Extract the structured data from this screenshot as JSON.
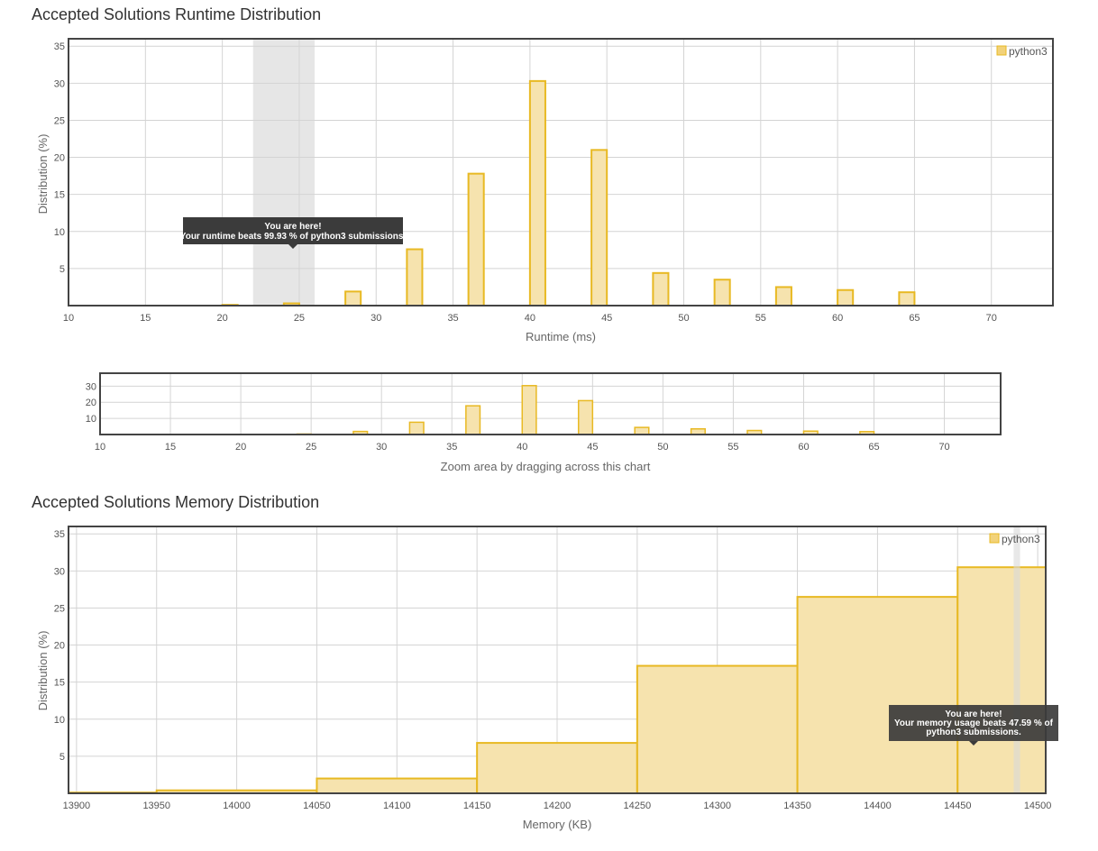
{
  "runtime_section": {
    "title": "Accepted Solutions Runtime Distribution"
  },
  "memory_section": {
    "title": "Accepted Solutions Memory Distribution"
  },
  "navigator": {
    "caption": "Zoom area by dragging across this chart"
  },
  "colors": {
    "bar_fill": "#f6e3ae",
    "bar_stroke": "#e8b923",
    "legend": "#e8b923",
    "highlight": "#d9d9d9",
    "tooltip_bg": "#3b3b3b",
    "frame": "#444444",
    "grid": "#d4d4d4"
  },
  "chart_data": [
    {
      "id": "runtime",
      "type": "bar",
      "title": "Accepted Solutions Runtime Distribution",
      "xlabel": "Runtime (ms)",
      "ylabel": "Distribution (%)",
      "legend": "python3",
      "xlim": [
        10,
        74
      ],
      "ylim": [
        0,
        36
      ],
      "xticks": [
        10,
        15,
        20,
        25,
        30,
        35,
        40,
        45,
        50,
        55,
        60,
        65,
        70
      ],
      "yticks": [
        5,
        10,
        15,
        20,
        25,
        30,
        35
      ],
      "bar_width": 1,
      "x": [
        20.5,
        24.5,
        28.5,
        32.5,
        36.5,
        40.5,
        44.5,
        48.5,
        52.5,
        56.5,
        60.5,
        64.5
      ],
      "values": [
        0.1,
        0.3,
        1.9,
        7.6,
        17.8,
        30.3,
        21.0,
        4.4,
        3.5,
        2.5,
        2.1,
        1.8
      ],
      "highlight": [
        22,
        26
      ],
      "tooltip": {
        "line1": "You are here!",
        "line2": "Your runtime beats 99.93 % of python3 submissions."
      }
    },
    {
      "id": "navigator",
      "type": "bar",
      "xlabel": "Zoom area by dragging across this chart",
      "xlim": [
        10,
        74
      ],
      "ylim": [
        0,
        38
      ],
      "xticks": [
        10,
        15,
        20,
        25,
        30,
        35,
        40,
        45,
        50,
        55,
        60,
        65,
        70
      ],
      "yticks": [
        10,
        20,
        30
      ],
      "bar_width": 1,
      "x": [
        20.5,
        24.5,
        28.5,
        32.5,
        36.5,
        40.5,
        44.5,
        48.5,
        52.5,
        56.5,
        60.5,
        64.5
      ],
      "values": [
        0.1,
        0.3,
        1.9,
        7.6,
        17.8,
        30.3,
        21.0,
        4.4,
        3.5,
        2.5,
        2.1,
        1.8
      ]
    },
    {
      "id": "memory",
      "type": "bar",
      "title": "Accepted Solutions Memory Distribution",
      "xlabel": "Memory (KB)",
      "ylabel": "Distribution (%)",
      "legend": "python3",
      "xlim": [
        13895,
        14505
      ],
      "ylim": [
        0,
        36
      ],
      "xticks": [
        13900,
        13950,
        14000,
        14050,
        14100,
        14150,
        14200,
        14250,
        14300,
        14350,
        14400,
        14450,
        14500
      ],
      "yticks": [
        5,
        10,
        15,
        20,
        25,
        30,
        35
      ],
      "bins": [
        {
          "x0": 13895,
          "x1": 13950,
          "value": 0.1
        },
        {
          "x0": 13950,
          "x1": 14050,
          "value": 0.4
        },
        {
          "x0": 14050,
          "x1": 14150,
          "value": 2.0
        },
        {
          "x0": 14150,
          "x1": 14250,
          "value": 6.8
        },
        {
          "x0": 14250,
          "x1": 14350,
          "value": 17.2
        },
        {
          "x0": 14350,
          "x1": 14450,
          "value": 26.5
        },
        {
          "x0": 14450,
          "x1": 14505,
          "value": 30.5
        }
      ],
      "highlight": [
        14485,
        14489
      ],
      "tooltip": {
        "line1": "You are here!",
        "line2": "Your memory usage beats 47.59 % of",
        "line3": "python3 submissions."
      }
    }
  ]
}
